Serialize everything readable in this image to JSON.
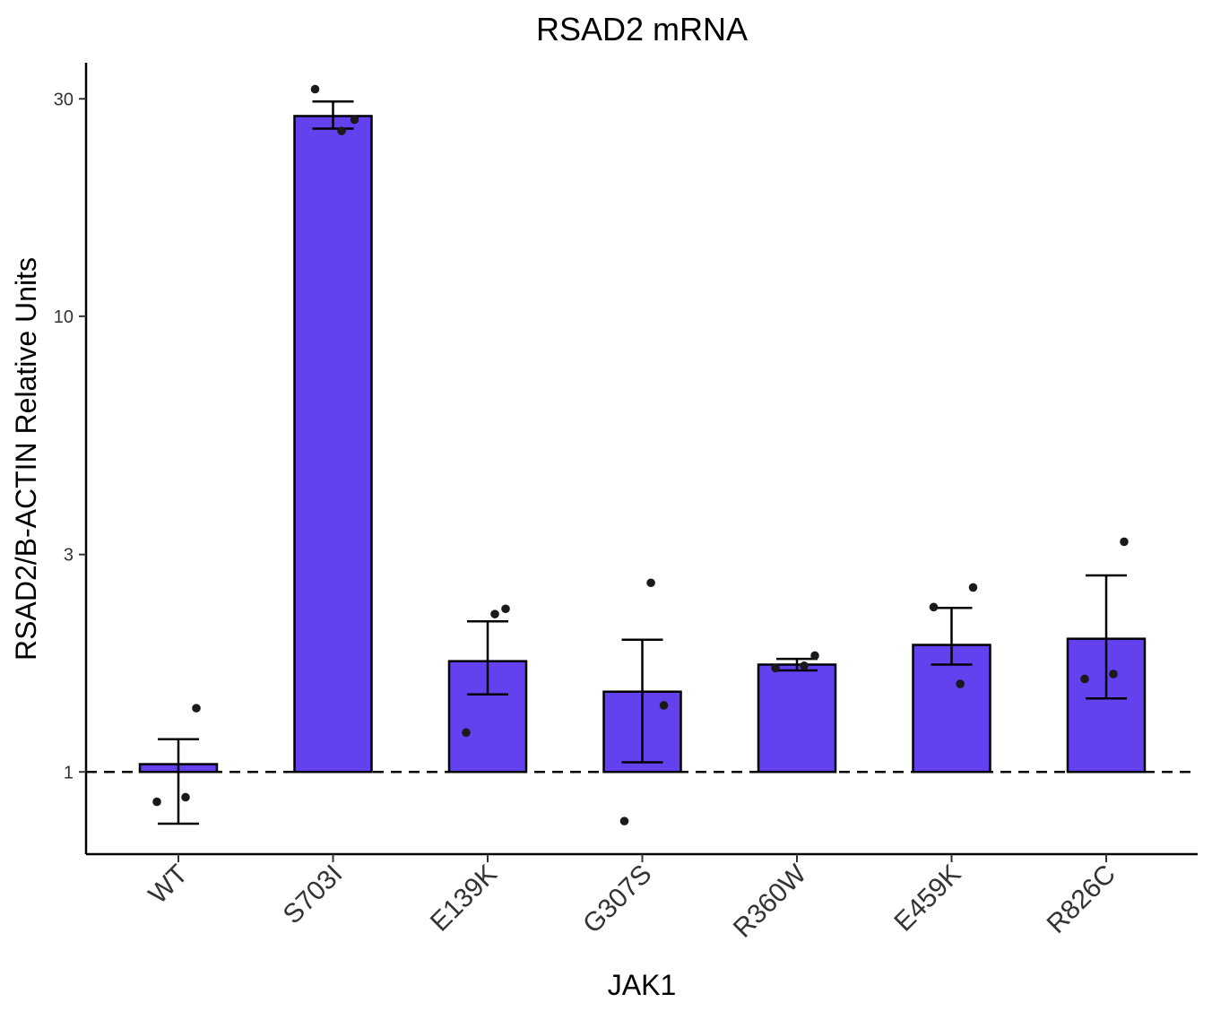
{
  "chart_data": {
    "type": "bar",
    "title": "RSAD2 mRNA",
    "xlabel": "JAK1",
    "ylabel": "RSAD2/B-ACTIN Relative Units",
    "yscale": "log",
    "ylim": [
      0.66,
      36
    ],
    "yticks": [
      1,
      3,
      10,
      30
    ],
    "baseline": 1,
    "reference_line": {
      "value": 1,
      "style": "dashed"
    },
    "grid": false,
    "legend": "none",
    "categories": [
      "WT",
      "S703I",
      "E139K",
      "G307S",
      "R360W",
      "E459K",
      "R826C"
    ],
    "values": [
      1.04,
      27.5,
      1.75,
      1.5,
      1.72,
      1.9,
      1.96
    ],
    "error_low": [
      0.77,
      25.8,
      1.48,
      1.05,
      1.67,
      1.72,
      1.45
    ],
    "error_high": [
      1.18,
      29.6,
      2.14,
      1.95,
      1.77,
      2.29,
      2.7
    ],
    "points": [
      [
        1.38,
        0.86,
        0.88
      ],
      [
        27.0,
        31.5,
        25.5
      ],
      [
        2.28,
        1.22,
        2.22
      ],
      [
        1.4,
        0.78,
        2.6
      ],
      [
        1.8,
        1.69,
        1.71
      ],
      [
        2.54,
        2.3,
        1.56
      ],
      [
        3.2,
        1.6,
        1.64
      ]
    ],
    "colors": {
      "bar_fill": "#6441EF",
      "bar_stroke": "#000000",
      "point": "#1a1a1a"
    }
  }
}
